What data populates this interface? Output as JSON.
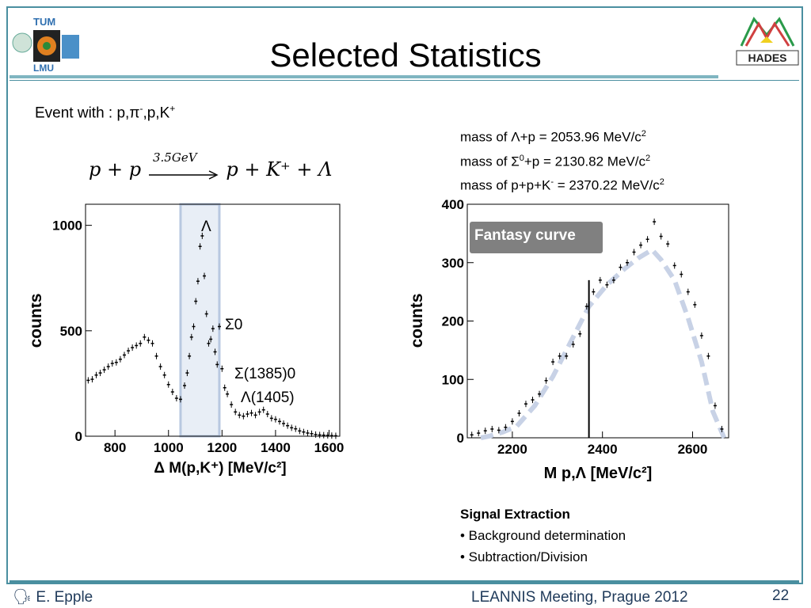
{
  "slide": {
    "title": "Selected Statistics",
    "page_number": "22",
    "author": "E. Epple",
    "meeting": "LEANNIS Meeting, Prague 2012"
  },
  "logos": {
    "left_text_1": "TUM",
    "left_text_2": "LMU",
    "right_text": "HADES"
  },
  "event": {
    "prefix": "Event with : p,π",
    "minus": "-",
    "mid": ",p,K",
    "plus": "+"
  },
  "masses": [
    {
      "pre": "mass of Λ+p  = 2053.96 MeV/c",
      "sup": "2",
      "post": "",
      "sup2": ""
    },
    {
      "pre": "mass of Σ",
      "sup": "0",
      "post": "+p = 2130.82 MeV/c",
      "sup2": "2"
    },
    {
      "pre": "mass of p+p+K",
      "sup": "-",
      "post": " = 2370.22 MeV/c",
      "sup2": "2"
    }
  ],
  "reaction": {
    "lhs": "p + p",
    "energy": "3.5GeV",
    "rhs": "p + K⁺ + Λ"
  },
  "signal": {
    "heading": "Signal Extraction",
    "bullets": [
      "• Background determination",
      "• Subtraction/Division"
    ]
  },
  "chart_data": [
    {
      "type": "scatter",
      "title": "",
      "xlabel": "Δ M(p,K⁺) [MeV/c²]",
      "ylabel": "counts",
      "xlim": [
        690,
        1640
      ],
      "ylim": [
        0,
        1100
      ],
      "xticks": [
        "800",
        "1000",
        "1200",
        "1400",
        "1600"
      ],
      "yticks": [
        "0",
        "500",
        "1000"
      ],
      "annotations": [
        "Λ",
        "Σ0",
        "Σ(1385)0",
        "Λ(1405)"
      ],
      "highlight_range": [
        1045,
        1190
      ],
      "series": [
        {
          "x": [
            700,
            715,
            730,
            745,
            760,
            775,
            790,
            805,
            820,
            835,
            850,
            865,
            880,
            895,
            910,
            925,
            940,
            955,
            970,
            985,
            1000,
            1015,
            1030,
            1045,
            1060,
            1070,
            1078,
            1086,
            1094,
            1102,
            1110,
            1118,
            1126,
            1134,
            1142,
            1150,
            1158,
            1166,
            1174,
            1182,
            1190,
            1200,
            1210,
            1220,
            1235,
            1250,
            1265,
            1280,
            1295,
            1310,
            1325,
            1340,
            1355,
            1370,
            1385,
            1400,
            1415,
            1430,
            1445,
            1460,
            1475,
            1490,
            1505,
            1520,
            1535,
            1550,
            1565,
            1580,
            1595,
            1610,
            1625
          ],
          "y": [
            265,
            270,
            290,
            300,
            315,
            330,
            345,
            350,
            365,
            385,
            405,
            420,
            430,
            440,
            470,
            455,
            440,
            380,
            330,
            290,
            245,
            210,
            180,
            175,
            240,
            300,
            380,
            470,
            520,
            640,
            735,
            900,
            950,
            760,
            580,
            440,
            460,
            510,
            400,
            340,
            520,
            320,
            230,
            200,
            150,
            115,
            100,
            95,
            105,
            110,
            100,
            115,
            125,
            105,
            85,
            80,
            70,
            60,
            50,
            40,
            35,
            25,
            20,
            15,
            12,
            8,
            6,
            5,
            4,
            3,
            2
          ]
        }
      ]
    },
    {
      "type": "scatter",
      "title": "",
      "xlabel": "M p,Λ [MeV/c²]",
      "ylabel": "counts",
      "xlim": [
        2100,
        2680
      ],
      "ylim": [
        0,
        400
      ],
      "xticks": [
        "2200",
        "2400",
        "2600"
      ],
      "yticks": [
        "0",
        "100",
        "200",
        "300",
        "400"
      ],
      "annotations": [
        "Fantasy curve"
      ],
      "marker_x": 2370,
      "series": [
        {
          "name": "Fantasy curve",
          "x": [
            2130,
            2150,
            2180,
            2210,
            2250,
            2290,
            2330,
            2370,
            2410,
            2450,
            2480,
            2510,
            2530,
            2560,
            2590,
            2620,
            2645,
            2670
          ],
          "y": [
            0,
            3,
            10,
            20,
            55,
            105,
            165,
            225,
            262,
            290,
            308,
            322,
            305,
            270,
            205,
            130,
            45,
            0
          ]
        },
        {
          "x": [
            2110,
            2125,
            2140,
            2155,
            2170,
            2185,
            2200,
            2215,
            2230,
            2245,
            2260,
            2275,
            2290,
            2305,
            2320,
            2335,
            2350,
            2365,
            2380,
            2395,
            2410,
            2425,
            2440,
            2455,
            2470,
            2485,
            2500,
            2515,
            2530,
            2545,
            2560,
            2575,
            2590,
            2605,
            2620,
            2635,
            2650,
            2665
          ],
          "y": [
            5,
            8,
            12,
            15,
            13,
            18,
            28,
            42,
            58,
            65,
            75,
            98,
            130,
            140,
            140,
            160,
            178,
            225,
            250,
            270,
            262,
            270,
            292,
            300,
            318,
            330,
            340,
            370,
            345,
            332,
            295,
            280,
            250,
            228,
            175,
            140,
            55,
            15
          ]
        }
      ]
    }
  ]
}
